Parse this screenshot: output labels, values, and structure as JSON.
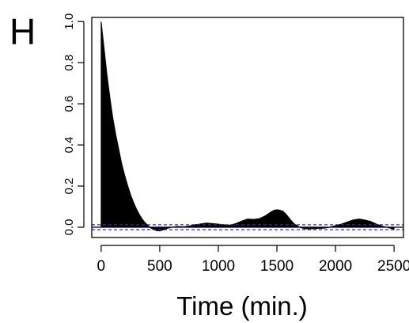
{
  "panel_label": "H",
  "chart_data": {
    "type": "area",
    "title": "",
    "xlabel": "Time (min.)",
    "ylabel": "",
    "xlim": [
      -80,
      2580
    ],
    "ylim": [
      -0.05,
      1.02
    ],
    "x_ticks": [
      0,
      500,
      1000,
      1500,
      2000,
      2500
    ],
    "x_tick_labels": [
      "0",
      "500",
      "1000",
      "1500",
      "2000",
      "2500"
    ],
    "y_ticks": [
      0.0,
      0.2,
      0.4,
      0.6,
      0.8,
      1.0
    ],
    "y_tick_labels": [
      "0.0",
      "0.2",
      "0.4",
      "0.6",
      "0.8",
      "1.0"
    ],
    "confidence_band": [
      -0.012,
      0.012
    ],
    "series": [
      {
        "x": [
          0,
          25,
          50,
          75,
          100,
          125,
          150,
          175,
          200,
          225,
          250,
          275,
          300,
          325,
          350,
          375,
          400,
          425,
          450,
          475,
          500,
          525,
          550,
          600,
          650,
          700,
          750,
          800,
          850,
          900,
          950,
          1000,
          1050,
          1100,
          1150,
          1200,
          1250,
          1300,
          1350,
          1400,
          1425,
          1450,
          1475,
          1500,
          1525,
          1550,
          1575,
          1600,
          1625,
          1650,
          1700,
          1750,
          1800,
          1850,
          1900,
          1950,
          2000,
          2050,
          2100,
          2150,
          2200,
          2250,
          2300,
          2350,
          2400,
          2450,
          2500
        ],
        "values": [
          1.0,
          0.87,
          0.74,
          0.63,
          0.53,
          0.45,
          0.38,
          0.31,
          0.255,
          0.205,
          0.16,
          0.123,
          0.09,
          0.063,
          0.04,
          0.022,
          0.008,
          -0.004,
          -0.012,
          -0.017,
          -0.018,
          -0.014,
          -0.008,
          0.0,
          0.004,
          0.002,
          0.006,
          0.012,
          0.016,
          0.02,
          0.018,
          0.015,
          0.012,
          0.01,
          0.018,
          0.03,
          0.04,
          0.038,
          0.042,
          0.055,
          0.065,
          0.075,
          0.082,
          0.085,
          0.083,
          0.078,
          0.065,
          0.048,
          0.03,
          0.015,
          -0.002,
          -0.008,
          -0.007,
          -0.006,
          -0.005,
          0.0,
          0.008,
          0.015,
          0.025,
          0.035,
          0.04,
          0.035,
          0.028,
          0.015,
          0.005,
          -0.002,
          -0.01
        ]
      }
    ],
    "fill_color": "#000000",
    "band_color": "#2a2acc",
    "grid": false
  }
}
